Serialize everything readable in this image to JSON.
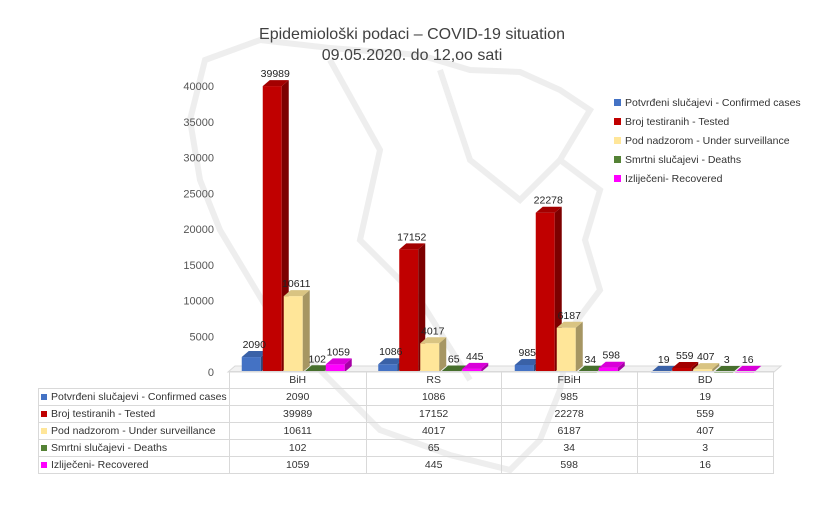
{
  "chart_data": {
    "type": "bar",
    "title": "Epidemiološki podaci – COVID-19 situation",
    "subtitle": "09.05.2020. do 12,oo sati",
    "categories": [
      "BiH",
      "RS",
      "FBiH",
      "BD"
    ],
    "series": [
      {
        "name": "Potvrđeni slučajevi - Confirmed cases",
        "color": "#4472C4",
        "values": [
          2090,
          1086,
          985,
          19
        ]
      },
      {
        "name": "Broj testiranih - Tested",
        "color": "#C00000",
        "values": [
          39989,
          17152,
          22278,
          559
        ]
      },
      {
        "name": "Pod nadzorom - Under surveillance",
        "color": "#FFE699",
        "values": [
          10611,
          4017,
          6187,
          407
        ]
      },
      {
        "name": "Smrtni slučajevi - Deaths",
        "color": "#548235",
        "values": [
          102,
          65,
          34,
          3
        ]
      },
      {
        "name": "Izliječeni- Recovered",
        "color": "#FF00FF",
        "values": [
          1059,
          445,
          598,
          16
        ]
      }
    ],
    "ylim": [
      0,
      40000
    ],
    "yticks": [
      0,
      5000,
      10000,
      15000,
      20000,
      25000,
      30000,
      35000,
      40000
    ],
    "legend": "right",
    "grid": false,
    "data_table": true
  }
}
